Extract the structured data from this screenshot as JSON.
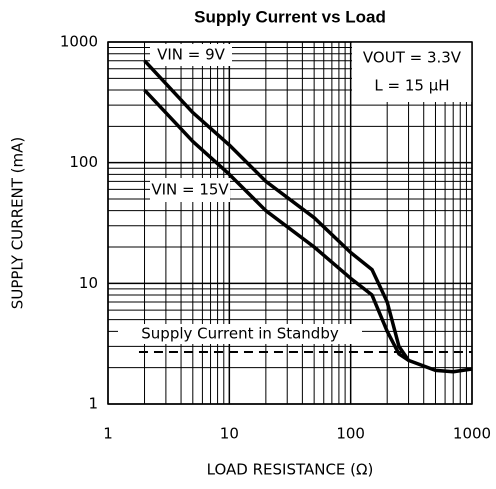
{
  "chart_data": {
    "type": "line",
    "title": "Supply Current vs Load",
    "xlabel": "LOAD RESISTANCE (Ω)",
    "ylabel": "SUPPLY CURRENT (mA)",
    "log_x": true,
    "log_y": true,
    "grid": true,
    "xlim": [
      1,
      1000
    ],
    "ylim": [
      1,
      1000
    ],
    "xticks": [
      1,
      10,
      100,
      1000
    ],
    "yticks": [
      1,
      10,
      100,
      1000
    ],
    "annotations": [
      "VOUT = 3.3V",
      "L = 15 μH"
    ],
    "series": [
      {
        "name": "VIN = 9V",
        "color": "#000000",
        "dashed": false,
        "x": [
          2,
          5,
          10,
          20,
          50,
          100,
          150,
          200,
          250,
          300,
          500,
          700,
          1000
        ],
        "values": [
          700,
          260,
          140,
          70,
          35,
          18,
          13,
          7,
          3,
          2.3,
          1.9,
          1.85,
          1.95
        ]
      },
      {
        "name": "VIN = 15V",
        "color": "#000000",
        "dashed": false,
        "x": [
          2,
          5,
          10,
          20,
          50,
          100,
          150,
          200,
          250,
          300
        ],
        "values": [
          400,
          150,
          80,
          40,
          20,
          11,
          8,
          4,
          2.6,
          2.3
        ]
      },
      {
        "name": "Supply Current in Standby",
        "color": "#000000",
        "dashed": true,
        "x": [
          1.8,
          1000
        ],
        "values": [
          2.7,
          2.7
        ]
      }
    ]
  }
}
